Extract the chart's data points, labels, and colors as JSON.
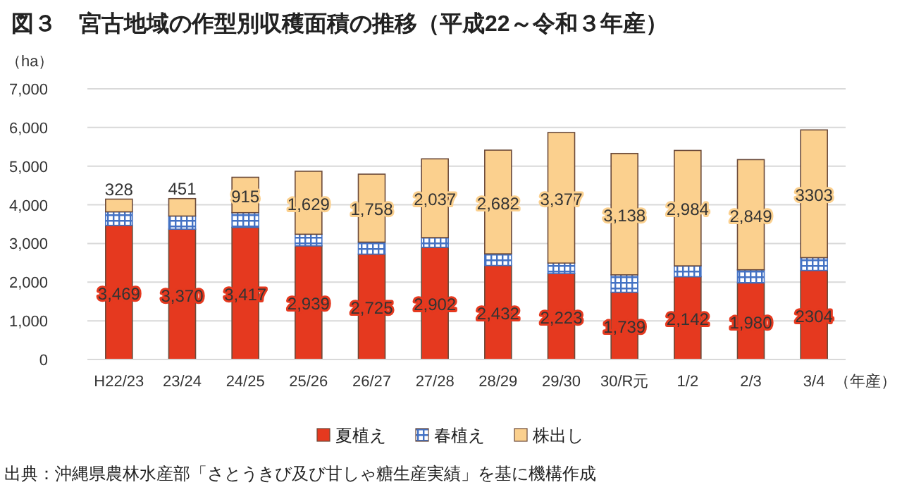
{
  "chart_data": {
    "type": "bar",
    "stacked": true,
    "title": "図３　宮古地域の作型別収穫面積の推移（平成22～令和３年産）",
    "ylabel": "（ha）",
    "xlabel": "（年産）",
    "categories": [
      "H22/23",
      "23/24",
      "24/25",
      "25/26",
      "26/27",
      "27/28",
      "28/29",
      "29/30",
      "30/R元",
      "1/2",
      "2/3",
      "3/4"
    ],
    "series": [
      {
        "name": "夏植え",
        "color": "#e5391f",
        "values": [
          3469,
          3370,
          3417,
          2939,
          2725,
          2902,
          2432,
          2223,
          1739,
          2142,
          1980,
          2304
        ],
        "value_labels": [
          "3,469",
          "3,370",
          "3,417",
          "2,939",
          "2,725",
          "2,902",
          "2,432",
          "2,223",
          "1,739",
          "2,142",
          "1,980",
          "2304"
        ]
      },
      {
        "name": "春植え",
        "color": "#4472c4",
        "values": [
          350,
          340,
          380,
          300,
          310,
          250,
          300,
          270,
          450,
          280,
          340,
          330
        ]
      },
      {
        "name": "株出し",
        "color": "#fbd08e",
        "values": [
          328,
          451,
          915,
          1629,
          1758,
          2037,
          2682,
          3377,
          3138,
          2984,
          2849,
          3303
        ],
        "value_labels": [
          "328",
          "451",
          "915",
          "1,629",
          "1,758",
          "2,037",
          "2,682",
          "3,377",
          "3,138",
          "2,984",
          "2,849",
          "3303"
        ]
      }
    ],
    "ylim": [
      0,
      7000
    ],
    "yticks": [
      {
        "value": 0,
        "label": "0"
      },
      {
        "value": 1000,
        "label": "1,000"
      },
      {
        "value": 2000,
        "label": "2,000"
      },
      {
        "value": 3000,
        "label": "3,000"
      },
      {
        "value": 4000,
        "label": "4,000"
      },
      {
        "value": 5000,
        "label": "5,000"
      },
      {
        "value": 6000,
        "label": "6,000"
      },
      {
        "value": 7000,
        "label": "7,000"
      }
    ],
    "grid": "y",
    "legend": "bottom",
    "annotations": [
      "出典：沖縄県農林水産部「さとうきび及び甘しゃ糖生産実績」を基に機構作成"
    ]
  }
}
